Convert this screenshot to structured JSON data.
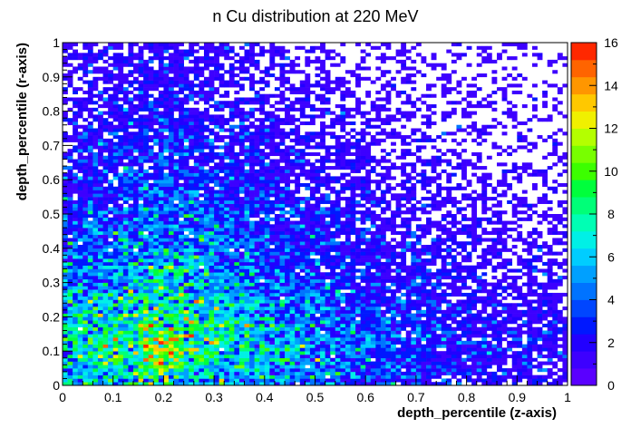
{
  "chart_data": {
    "type": "heatmap",
    "title": "n Cu distribution at 220 MeV",
    "xlabel": "depth_percentile (z-axis)",
    "ylabel": "depth_percentile (r-axis)",
    "xlim": [
      0,
      1
    ],
    "ylim": [
      0,
      1
    ],
    "x_ticks": [
      "0",
      "0.1",
      "0.2",
      "0.3",
      "0.4",
      "0.5",
      "0.6",
      "0.7",
      "0.8",
      "0.9",
      "1"
    ],
    "y_ticks": [
      "0",
      "0.1",
      "0.2",
      "0.3",
      "0.4",
      "0.5",
      "0.6",
      "0.7",
      "0.8",
      "0.9",
      "1"
    ],
    "bins": {
      "x": 100,
      "y": 100
    },
    "colorbar": {
      "range": [
        0,
        16
      ],
      "ticks": [
        "0",
        "2",
        "4",
        "6",
        "8",
        "10",
        "12",
        "14",
        "16"
      ],
      "levels": 20,
      "colors": [
        "#5a00ff",
        "#3d00ff",
        "#2200ff",
        "#0018ff",
        "#0046ff",
        "#0073ff",
        "#00a0ff",
        "#00cdff",
        "#00f0e6",
        "#00ffb4",
        "#00ff78",
        "#00ff3c",
        "#3cff00",
        "#78ff00",
        "#b4ff00",
        "#f0f000",
        "#ffc800",
        "#ff9600",
        "#ff6400",
        "#ff2800"
      ]
    },
    "density_model": {
      "description_of_values": "bin counts, peaked near z=0.2, r=0.12, decreasing with z and r",
      "peak_count": 11,
      "peak_z": 0.2,
      "peak_r": 0.12,
      "z_scale": 0.38,
      "r_scale": 0.4,
      "max_count": 16
    }
  }
}
